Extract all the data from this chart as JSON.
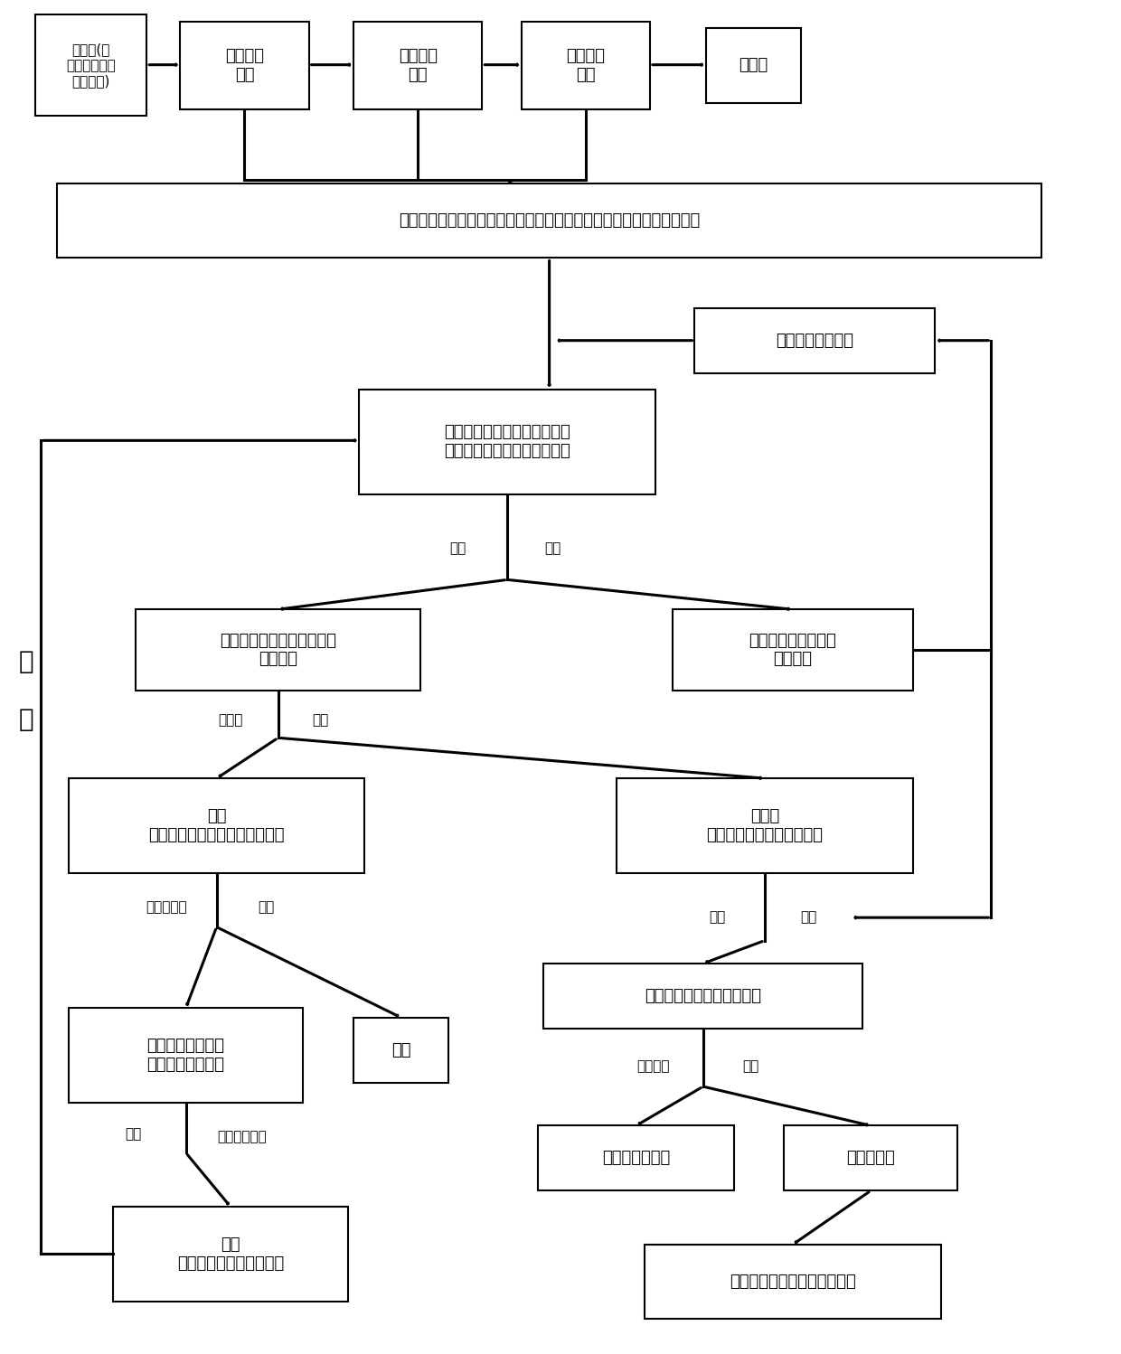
{
  "figsize": [
    12.4,
    14.98
  ],
  "dpi": 100,
  "bg_color": "#ffffff",
  "box_color": "#ffffff",
  "box_edge_color": "#000000",
  "text_color": "#000000",
  "arrow_color": "#000000",
  "font_size": 13,
  "label_font_size": 11,
  "side_label": "循\n\n环",
  "boxes": {
    "gongye_gui": {
      "bx": 0.03,
      "by": 0.915,
      "bw": 0.1,
      "bh": 0.075,
      "text": "工业硅(含\n钙、铁、铝、\n硼等杂质)"
    },
    "san_lv_he": {
      "bx": 0.16,
      "by": 0.92,
      "bw": 0.115,
      "bh": 0.065,
      "text": "三氯氢硅\n合成"
    },
    "san_lv_ti": {
      "bx": 0.315,
      "by": 0.92,
      "bw": 0.115,
      "bh": 0.065,
      "text": "三氯氢硅\n提纯"
    },
    "gao_chun": {
      "bx": 0.465,
      "by": 0.92,
      "bw": 0.115,
      "bh": 0.065,
      "text": "高纯氢气\n还原"
    },
    "duo_jing": {
      "bx": 0.63,
      "by": 0.925,
      "bw": 0.085,
      "bh": 0.055,
      "text": "多晶硅"
    },
    "wei_qi_1": {
      "bx": 0.05,
      "by": 0.81,
      "bw": 0.88,
      "bh": 0.055,
      "text": "尾气（主要包括：氢气、氯化氢、二氯二氢硅、三氯氢硅、四氯化硅）"
    },
    "ye_tai_si": {
      "bx": 0.62,
      "by": 0.725,
      "bw": 0.215,
      "bh": 0.048,
      "text": "液态四氯化硅淋洗"
    },
    "wei_qi_2": {
      "bx": 0.32,
      "by": 0.635,
      "bw": 0.265,
      "bh": 0.078,
      "text": "尾气（氢气、氯化氢、二氯二\n氢硅、三氯氢硅、四氯化硅）"
    },
    "qi_tai_1": {
      "bx": 0.12,
      "by": 0.49,
      "bw": 0.255,
      "bh": 0.06,
      "text": "氢气、氯化氢、二氯二氢硅\n（气态）"
    },
    "san_si_ye": {
      "bx": 0.6,
      "by": 0.49,
      "bw": 0.215,
      "bh": 0.06,
      "text": "三氯氢硅、四氯化硅\n（液态）"
    },
    "h2_gas": {
      "bx": 0.06,
      "by": 0.355,
      "bw": 0.265,
      "bh": 0.07,
      "text": "氢气\n（含少量的氯化氢、四氯化硅）"
    },
    "absorb": {
      "bx": 0.55,
      "by": 0.355,
      "bw": 0.265,
      "bh": 0.07,
      "text": "吸收剂\n（含氯化氢、二氯二氢硅）"
    },
    "qi_tai_2": {
      "bx": 0.485,
      "by": 0.24,
      "bw": 0.285,
      "bh": 0.048,
      "text": "气态的氯化氢、二氯二氢硅"
    },
    "huo_xing": {
      "bx": 0.06,
      "by": 0.185,
      "bw": 0.21,
      "bh": 0.07,
      "text": "活性炭（吸附了氯\n化氢、四氯化硅）"
    },
    "h2_pure": {
      "bx": 0.315,
      "by": 0.2,
      "bw": 0.085,
      "bh": 0.048,
      "text": "氢气"
    },
    "ye_er": {
      "bx": 0.48,
      "by": 0.12,
      "bw": 0.175,
      "bh": 0.048,
      "text": "液态二氯二氢硅"
    },
    "qi_hcl": {
      "bx": 0.7,
      "by": 0.12,
      "bw": 0.155,
      "bh": 0.048,
      "text": "气态氯化氢"
    },
    "h2_final": {
      "bx": 0.1,
      "by": 0.038,
      "bw": 0.21,
      "bh": 0.07,
      "text": "氢气\n（含氯化氢、四氯化硅）"
    },
    "san_he": {
      "bx": 0.575,
      "by": 0.025,
      "bw": 0.265,
      "bh": 0.055,
      "text": "多晶硅生产中三氯氢硅的合成"
    }
  }
}
